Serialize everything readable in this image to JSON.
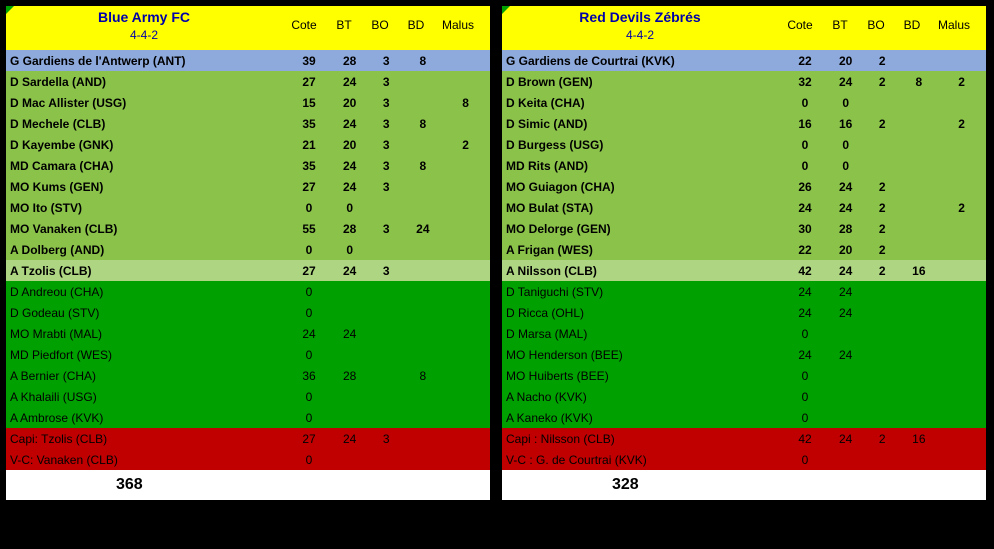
{
  "cols": {
    "cote": "Cote",
    "bt": "BT",
    "bo": "BO",
    "bd": "BD",
    "malus": "Malus"
  },
  "sections": {
    "starter_gk": "gk",
    "starter": "start",
    "starter_last": "light-start",
    "bench": "bench",
    "captain": "cap"
  },
  "teams": [
    {
      "name": "Blue Army FC",
      "formation": "4-4-2",
      "total": 368,
      "rows": [
        {
          "sec": "starter_gk",
          "label": "G Gardiens de l'Antwerp (ANT)",
          "bold": true,
          "cote": 39,
          "bt": 28,
          "bo": 3,
          "bd": "",
          "malus": 8
        },
        {
          "sec": "starter",
          "label": "D Sardella (AND)",
          "bold": true,
          "cote": 27,
          "bt": 24,
          "bo": 3,
          "bd": "",
          "malus": ""
        },
        {
          "sec": "starter",
          "label": "D Mac Allister (USG)",
          "bold": true,
          "cote": 15,
          "bt": 20,
          "bo": 3,
          "bd": "",
          "malus": "",
          "malusExtra": 8
        },
        {
          "sec": "starter",
          "label": "D Mechele (CLB)",
          "bold": true,
          "cote": 35,
          "bt": 24,
          "bo": 3,
          "bd": "",
          "malus": 8
        },
        {
          "sec": "starter",
          "label": "D Kayembe (GNK)",
          "bold": true,
          "cote": 21,
          "bt": 20,
          "bo": 3,
          "bd": "",
          "malus": "",
          "malusExtra": 2
        },
        {
          "sec": "starter",
          "label": "MD Camara (CHA)",
          "bold": true,
          "cote": 35,
          "bt": 24,
          "bo": 3,
          "bd": "",
          "malus": 8
        },
        {
          "sec": "starter",
          "label": "MO Kums (GEN)",
          "bold": true,
          "cote": 27,
          "bt": 24,
          "bo": 3,
          "bd": "",
          "malus": ""
        },
        {
          "sec": "starter",
          "label": "MO Ito (STV)",
          "bold": true,
          "cote": 0,
          "bt": 0,
          "bo": "",
          "bd": "",
          "malus": ""
        },
        {
          "sec": "starter",
          "label": "MO Vanaken (CLB)",
          "bold": true,
          "cote": 55,
          "bt": 28,
          "bo": 3,
          "bd": 24,
          "malus": ""
        },
        {
          "sec": "starter",
          "label": "A Dolberg (AND)",
          "bold": true,
          "cote": 0,
          "bt": 0,
          "bo": "",
          "bd": "",
          "malus": ""
        },
        {
          "sec": "starter_last",
          "label": "A Tzolis (CLB)",
          "bold": true,
          "cote": 27,
          "bt": 24,
          "bo": 3,
          "bd": "",
          "malus": ""
        },
        {
          "sec": "bench",
          "label": "D Andreou (CHA)",
          "cote": 0
        },
        {
          "sec": "bench",
          "label": "D Godeau (STV)",
          "cote": 0
        },
        {
          "sec": "bench",
          "label": "MO Mrabti (MAL)",
          "cote": 24,
          "bt": 24
        },
        {
          "sec": "bench",
          "label": "MD Piedfort (WES)",
          "cote": 0
        },
        {
          "sec": "bench",
          "label": "A Bernier (CHA)",
          "cote": 36,
          "bt": 28,
          "bd": 8
        },
        {
          "sec": "bench",
          "label": "A Khalaili (USG)",
          "cote": 0
        },
        {
          "sec": "bench",
          "label": "A Ambrose (KVK)",
          "cote": 0
        },
        {
          "sec": "captain",
          "label": "Capi: Tzolis (CLB)",
          "cote": 27,
          "bt": 24,
          "bo": 3
        },
        {
          "sec": "captain",
          "label": "V-C: Vanaken (CLB)",
          "cote": 0
        }
      ]
    },
    {
      "name": "Red Devils Zébrés",
      "formation": "4-4-2",
      "total": 328,
      "rows": [
        {
          "sec": "starter_gk",
          "label": "G Gardiens de Courtrai (KVK)",
          "bold": true,
          "cote": 22,
          "bt": 20,
          "bo": 2,
          "bd": "",
          "malus": ""
        },
        {
          "sec": "starter",
          "label": "D Brown (GEN)",
          "bold": true,
          "cote": 32,
          "bt": 24,
          "bo": 2,
          "bd": "",
          "malus": 8,
          "malusExtra": 2
        },
        {
          "sec": "starter",
          "label": "D Keita (CHA)",
          "bold": true,
          "cote": 0,
          "bt": 0,
          "bo": "",
          "bd": "",
          "malus": ""
        },
        {
          "sec": "starter",
          "label": "D Simic (AND)",
          "bold": true,
          "cote": 16,
          "bt": 16,
          "bo": 2,
          "bd": "",
          "malus": "",
          "malusExtra": 2
        },
        {
          "sec": "starter",
          "label": "D Burgess (USG)",
          "bold": true,
          "cote": 0,
          "bt": 0,
          "bo": "",
          "bd": "",
          "malus": ""
        },
        {
          "sec": "starter",
          "label": "MD Rits (AND)",
          "bold": true,
          "cote": 0,
          "bt": 0,
          "bo": "",
          "bd": "",
          "malus": ""
        },
        {
          "sec": "starter",
          "label": "MO Guiagon (CHA)",
          "bold": true,
          "cote": 26,
          "bt": 24,
          "bo": 2,
          "bd": "",
          "malus": ""
        },
        {
          "sec": "starter",
          "label": "MO Bulat (STA)",
          "bold": true,
          "cote": 24,
          "bt": 24,
          "bo": 2,
          "bd": "",
          "malus": "",
          "malusExtra": 2
        },
        {
          "sec": "starter",
          "label": "MO Delorge (GEN)",
          "bold": true,
          "cote": 30,
          "bt": 28,
          "bo": 2,
          "bd": "",
          "malus": ""
        },
        {
          "sec": "starter",
          "label": "A Frigan (WES)",
          "bold": true,
          "cote": 22,
          "bt": 20,
          "bo": 2,
          "bd": "",
          "malus": ""
        },
        {
          "sec": "starter_last",
          "label": "A Nilsson (CLB)",
          "bold": true,
          "cote": 42,
          "bt": 24,
          "bo": 2,
          "bd": 16,
          "malus": ""
        },
        {
          "sec": "bench",
          "label": "D Taniguchi (STV)",
          "cote": 24,
          "bt": 24
        },
        {
          "sec": "bench",
          "label": "D Ricca (OHL)",
          "cote": 24,
          "bt": 24
        },
        {
          "sec": "bench",
          "label": "D Marsa (MAL)",
          "cote": 0
        },
        {
          "sec": "bench",
          "label": "MO Henderson (BEE)",
          "cote": 24,
          "bt": 24
        },
        {
          "sec": "bench",
          "label": "MO Huiberts (BEE)",
          "cote": 0
        },
        {
          "sec": "bench",
          "label": "A Nacho (KVK)",
          "cote": 0
        },
        {
          "sec": "bench",
          "label": "A Kaneko (KVK)",
          "cote": 0
        },
        {
          "sec": "captain",
          "label": "Capi : Nilsson (CLB)",
          "cote": 42,
          "bt": 24,
          "bo": 2,
          "bd": 16
        },
        {
          "sec": "captain",
          "label": "V-C : G. de Courtrai (KVK)",
          "cote": 0
        }
      ]
    }
  ]
}
